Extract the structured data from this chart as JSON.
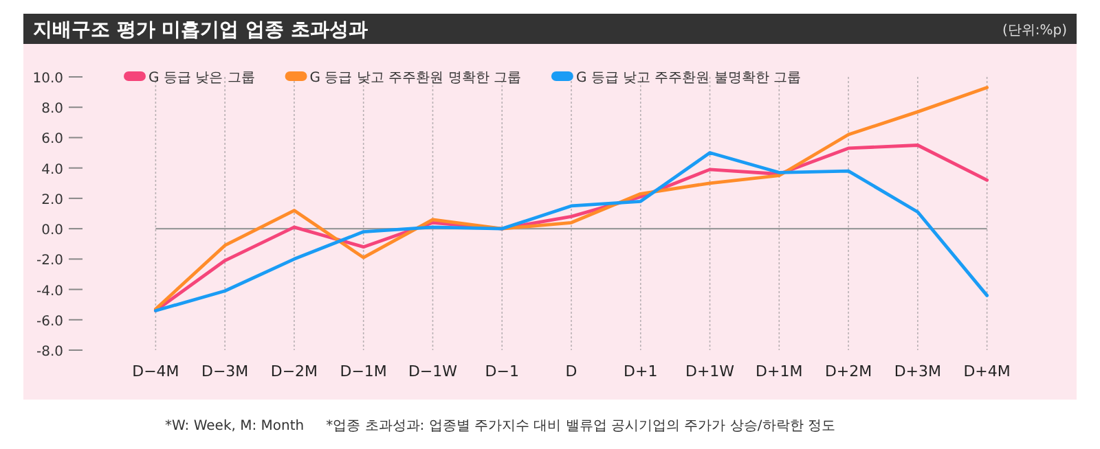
{
  "chart_data": {
    "type": "line",
    "title": "지배구조 평가 미흡기업 업종 초과성과",
    "ylabel": "(단위:%p)",
    "categories": [
      "D−4M",
      "D−3M",
      "D−2M",
      "D−1M",
      "D−1W",
      "D−1",
      "D",
      "D+1",
      "D+1W",
      "D+1M",
      "D+2M",
      "D+3M",
      "D+4M"
    ],
    "series": [
      {
        "name": "G 등급 낮은 그룹",
        "color": "#f5457a",
        "values": [
          -5.4,
          -2.1,
          0.1,
          -1.2,
          0.4,
          0,
          0.8,
          2.1,
          3.9,
          3.6,
          5.3,
          5.5,
          3.2
        ]
      },
      {
        "name": "G 등급 낮고 주주환원 명확한 그룹",
        "color": "#ff8c2a",
        "values": [
          -5.3,
          -1.1,
          1.2,
          -1.9,
          0.6,
          0,
          0.4,
          2.3,
          3.0,
          3.5,
          6.2,
          7.7,
          9.3
        ]
      },
      {
        "name": "G 등급 낮고 주주환원 불명확한 그룹",
        "color": "#1a9cf5",
        "values": [
          -5.4,
          -4.1,
          -2.0,
          -0.2,
          0.1,
          0,
          1.5,
          1.8,
          5.0,
          3.7,
          3.8,
          1.1,
          -4.4
        ]
      }
    ],
    "ylim": [
      -8,
      10
    ],
    "yticks": [
      {
        "value": -8,
        "label": "-8.0"
      },
      {
        "value": -6,
        "label": "-6.0"
      },
      {
        "value": -4,
        "label": "-4.0"
      },
      {
        "value": -2,
        "label": "-2.0"
      },
      {
        "value": 0,
        "label": "0.0"
      },
      {
        "value": 2,
        "label": "2.0"
      },
      {
        "value": 4,
        "label": "4.0"
      },
      {
        "value": 6,
        "label": "6.0"
      },
      {
        "value": 8,
        "label": "8.0"
      },
      {
        "value": 10,
        "label": "10.0"
      }
    ],
    "ref_lines": [
      {
        "axis": "y",
        "value": 0,
        "color": "#9a9a9a"
      }
    ],
    "grid": "x",
    "legend": "top",
    "marker": "none",
    "line_style": "solid",
    "annotations": [
      "*W: Week, M: Month",
      "*업종 초과성과: 업종별 주가지수 대비 밸류업 공시기업의 주가가 상승/하락한 정도"
    ]
  }
}
